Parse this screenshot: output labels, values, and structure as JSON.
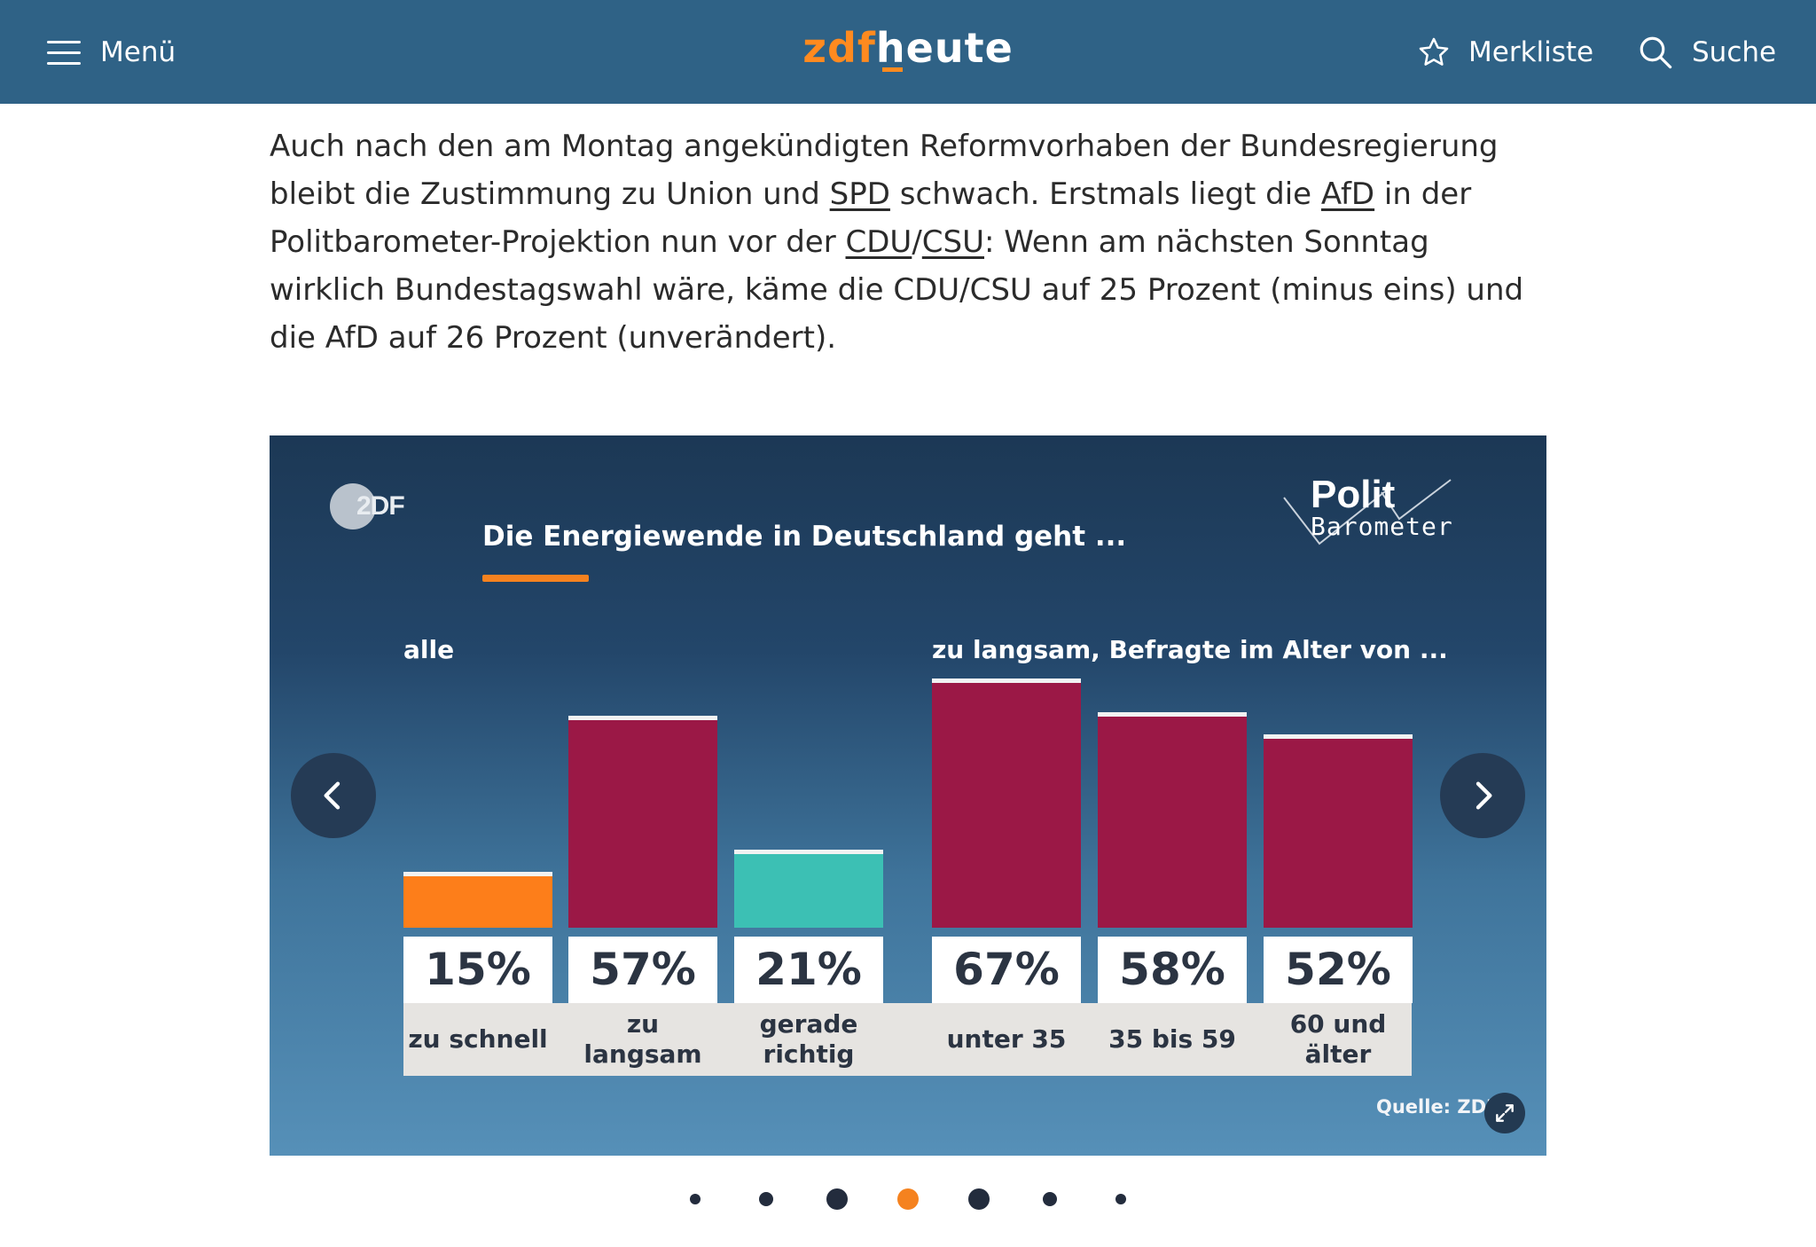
{
  "header": {
    "menu_label": "Menü",
    "logo_zdf": "zdf",
    "logo_heute": "heute",
    "bookmarks_label": "Merkliste",
    "search_label": "Suche",
    "background_color": "#2f6286",
    "accent_color": "#ff8a1f"
  },
  "article": {
    "p1": "Auch nach den am Montag angekündigten Reformvorhaben der Bundesregierung bleibt die Zustimmung zu Union und ",
    "link_spd": "SPD",
    "p2": " schwach. Erstmals liegt die ",
    "link_afd": "AfD",
    "p3": " in der Politbarometer-Projektion nun vor der ",
    "link_cdu": "CDU",
    "slash": "/",
    "link_csu": "CSU",
    "p4": ": Wenn am nächsten Sonntag wirklich Bundestagswahl wäre, käme die CDU/CSU auf 25 Prozent (minus eins) und die AfD auf 26 Prozent (unverändert)."
  },
  "carousel": {
    "zdf_logo_text": "2DF",
    "politbarometer_polit": "Polit",
    "politbarometer_barometer": "Barometer",
    "source": "Quelle: ZDF",
    "icons": [
      "chevron-left-icon",
      "chevron-right-icon",
      "expand-icon"
    ],
    "pagination": {
      "total": 7,
      "active_index": 3
    }
  },
  "chart_data": {
    "type": "bar",
    "title": "Die Energiewende in Deutschland geht ...",
    "groups": [
      {
        "label": "alle",
        "categories": [
          "zu schnell",
          "zu langsam",
          "gerade richtig"
        ],
        "values": [
          15,
          57,
          21
        ],
        "colors": [
          "#fd7e1a",
          "#9b1846",
          "#3cc0b4"
        ]
      },
      {
        "label": "zu langsam, Befragte im Alter von ...",
        "categories": [
          "unter 35",
          "35 bis 59",
          "60 und älter"
        ],
        "values": [
          67,
          58,
          52
        ],
        "colors": [
          "#9b1846",
          "#9b1846",
          "#9b1846"
        ]
      }
    ],
    "value_labels": [
      "15%",
      "57%",
      "21%",
      "67%",
      "58%",
      "52%"
    ],
    "unit": "%",
    "ylim": [
      0,
      70
    ],
    "grid": false,
    "legend": "none"
  }
}
